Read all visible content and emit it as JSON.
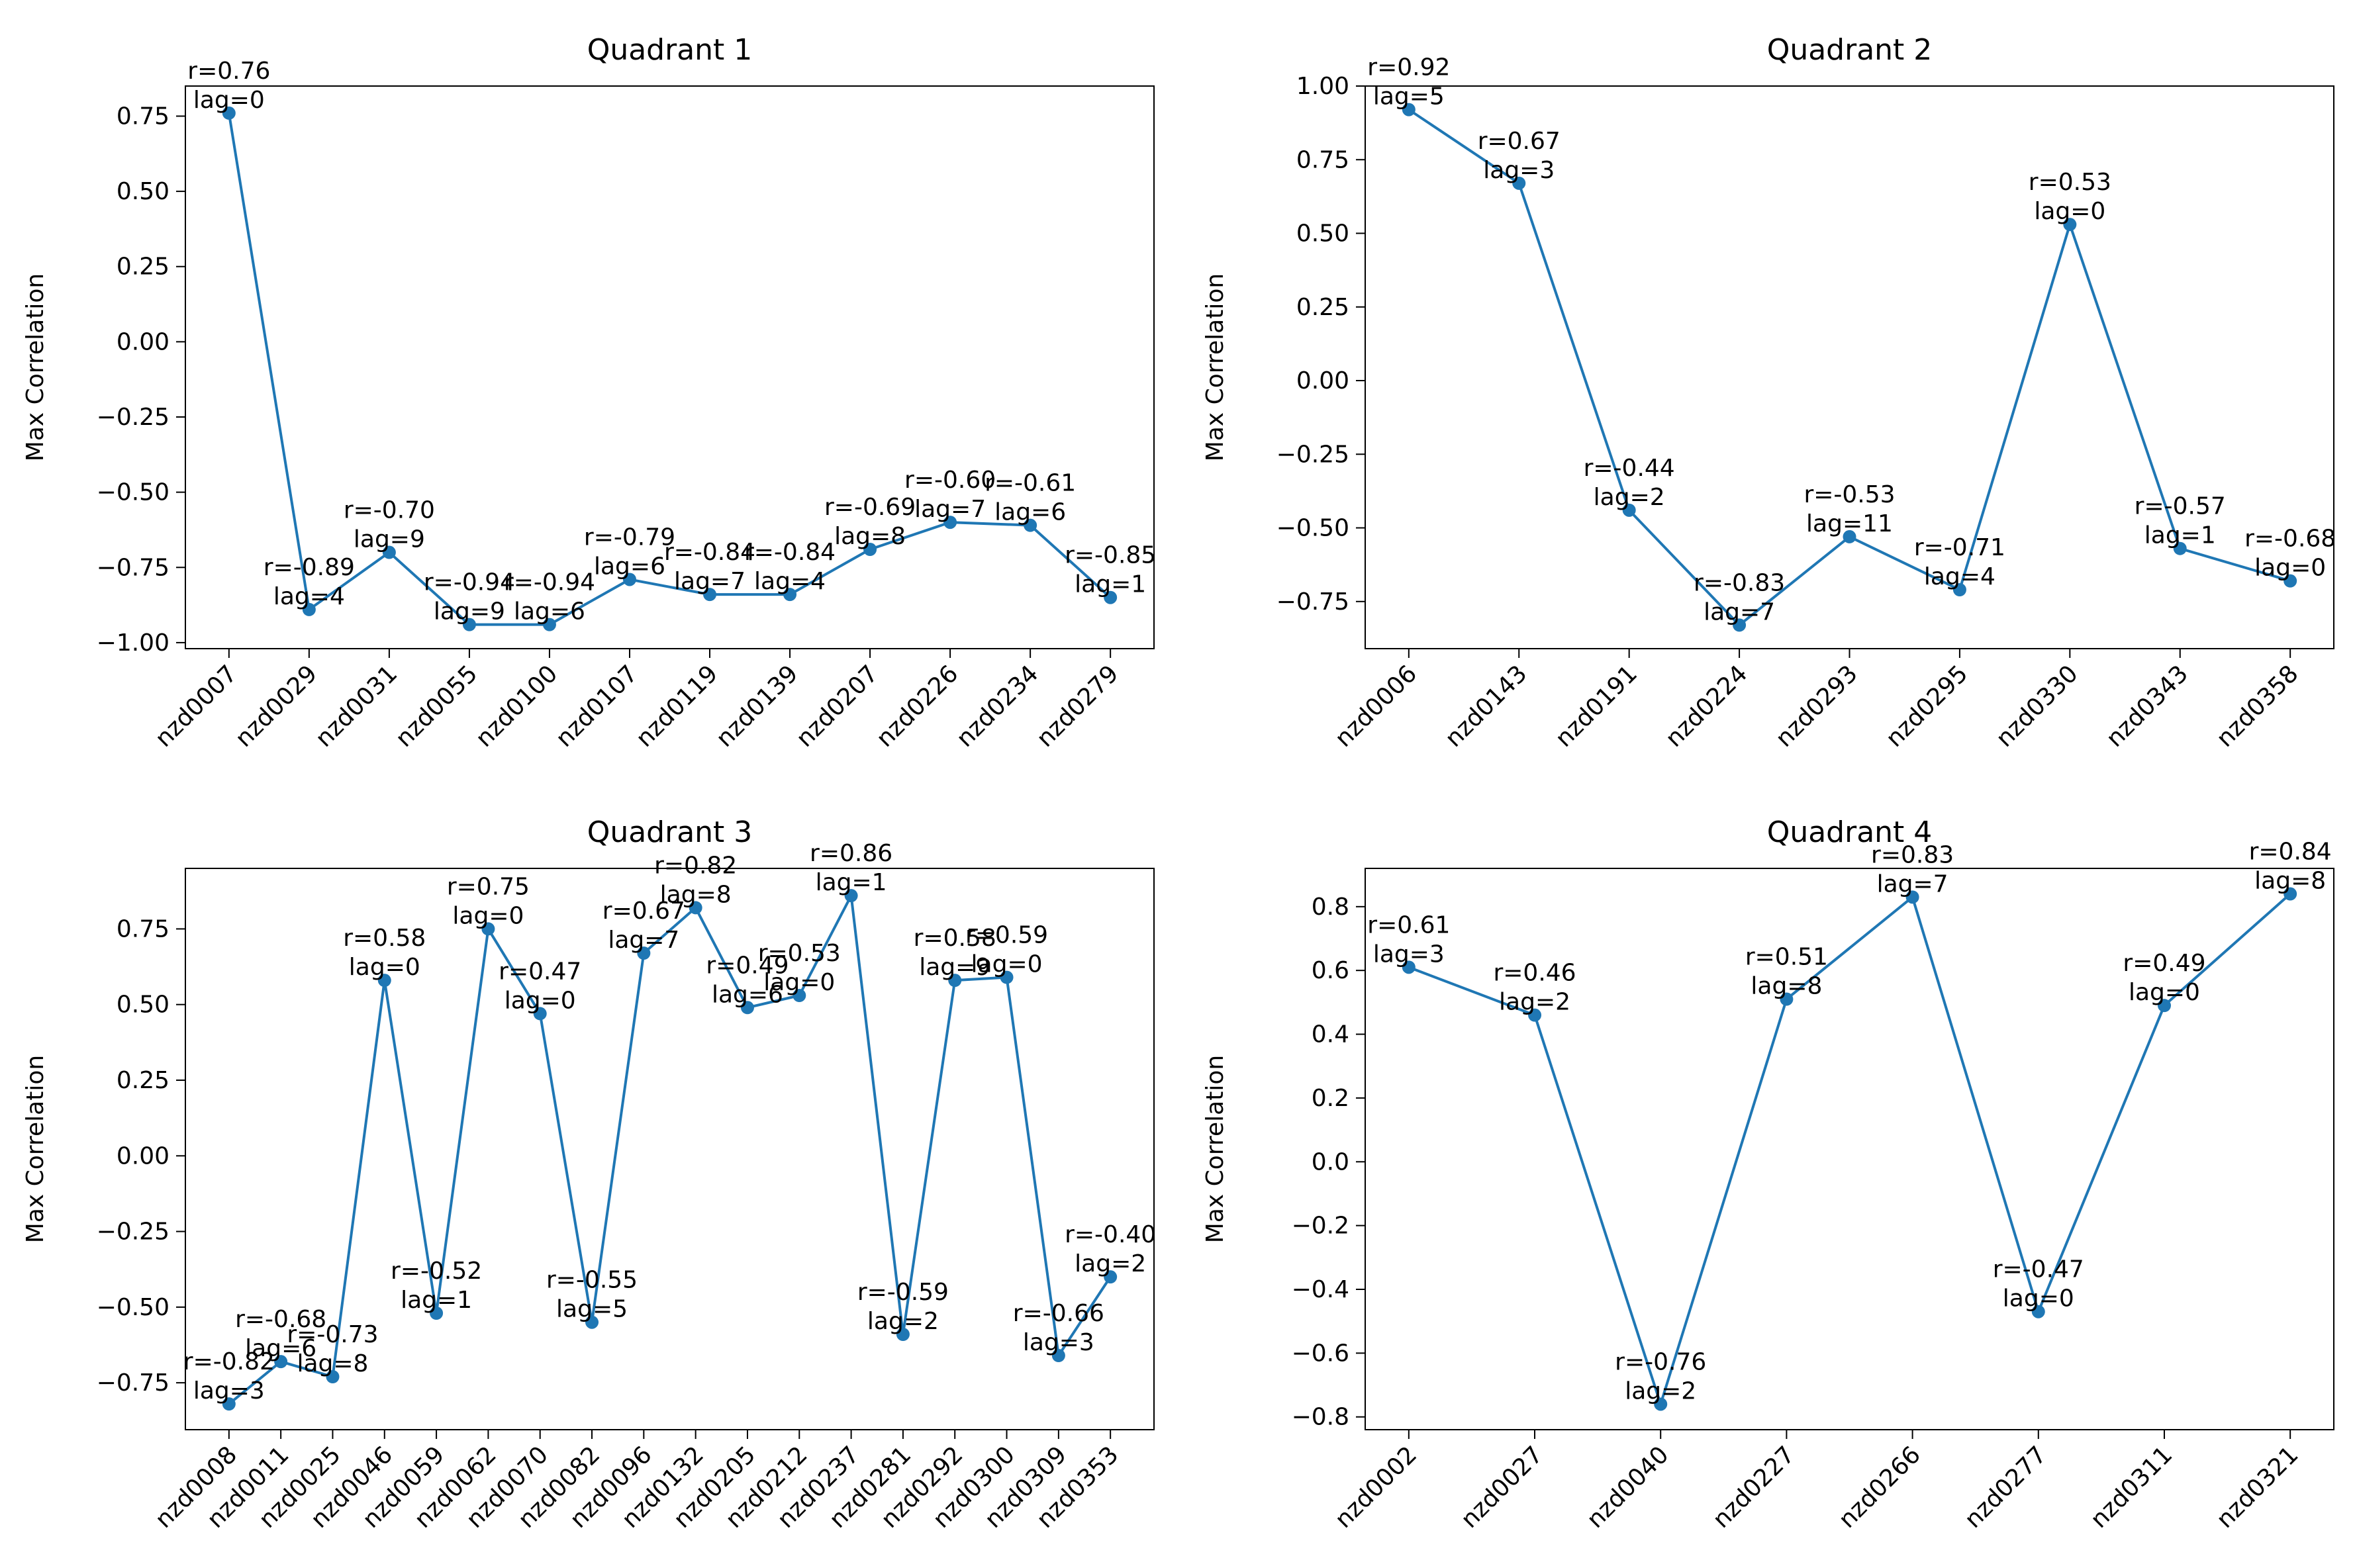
{
  "colors": {
    "line": "#1f77b4",
    "axis": "#000000",
    "background": "#ffffff"
  },
  "chart_data": [
    {
      "type": "line",
      "title": "Quadrant 1",
      "xlabel": "",
      "ylabel": "Max Correlation",
      "ylim": [
        -1.02,
        0.85
      ],
      "yticks": [
        "−1.00",
        "−0.75",
        "−0.50",
        "−0.25",
        "0.00",
        "0.25",
        "0.50",
        "0.75"
      ],
      "ytick_values": [
        -1.0,
        -0.75,
        -0.5,
        -0.25,
        0.0,
        0.25,
        0.5,
        0.75
      ],
      "grid": false,
      "legend": "none",
      "categories": [
        "nzd0007",
        "nzd0029",
        "nzd0031",
        "nzd0055",
        "nzd0100",
        "nzd0107",
        "nzd0119",
        "nzd0139",
        "nzd0207",
        "nzd0226",
        "nzd0234",
        "nzd0279"
      ],
      "values": [
        0.76,
        -0.89,
        -0.7,
        -0.94,
        -0.94,
        -0.79,
        -0.84,
        -0.84,
        -0.69,
        -0.6,
        -0.61,
        -0.85
      ],
      "r_labels": [
        "r=0.76",
        "r=-0.89",
        "r=-0.70",
        "r=-0.94",
        "r=-0.94",
        "r=-0.79",
        "r=-0.84",
        "r=-0.84",
        "r=-0.69",
        "r=-0.60",
        "r=-0.61",
        "r=-0.85"
      ],
      "lag_labels": [
        "lag=0",
        "lag=4",
        "lag=9",
        "lag=9",
        "lag=6",
        "lag=6",
        "lag=7",
        "lag=4",
        "lag=8",
        "lag=7",
        "lag=6",
        "lag=1"
      ]
    },
    {
      "type": "line",
      "title": "Quadrant 2",
      "xlabel": "",
      "ylabel": "Max Correlation",
      "ylim": [
        -0.91,
        1.0
      ],
      "yticks": [
        "−0.75",
        "−0.50",
        "−0.25",
        "0.00",
        "0.25",
        "0.50",
        "0.75",
        "1.00"
      ],
      "ytick_values": [
        -0.75,
        -0.5,
        -0.25,
        0.0,
        0.25,
        0.5,
        0.75,
        1.0
      ],
      "grid": false,
      "legend": "none",
      "categories": [
        "nzd0006",
        "nzd0143",
        "nzd0191",
        "nzd0224",
        "nzd0293",
        "nzd0295",
        "nzd0330",
        "nzd0343",
        "nzd0358"
      ],
      "values": [
        0.92,
        0.67,
        -0.44,
        -0.83,
        -0.53,
        -0.71,
        0.53,
        -0.57,
        -0.68
      ],
      "r_labels": [
        "r=0.92",
        "r=0.67",
        "r=-0.44",
        "r=-0.83",
        "r=-0.53",
        "r=-0.71",
        "r=0.53",
        "r=-0.57",
        "r=-0.68"
      ],
      "lag_labels": [
        "lag=5",
        "lag=3",
        "lag=2",
        "lag=7",
        "lag=11",
        "lag=4",
        "lag=0",
        "lag=1",
        "lag=0"
      ]
    },
    {
      "type": "line",
      "title": "Quadrant 3",
      "xlabel": "",
      "ylabel": "Max Correlation",
      "ylim": [
        -0.905,
        0.95
      ],
      "yticks": [
        "−0.75",
        "−0.50",
        "−0.25",
        "0.00",
        "0.25",
        "0.50",
        "0.75"
      ],
      "ytick_values": [
        -0.75,
        -0.5,
        -0.25,
        0.0,
        0.25,
        0.5,
        0.75
      ],
      "grid": false,
      "legend": "none",
      "categories": [
        "nzd0008",
        "nzd0011",
        "nzd0025",
        "nzd0046",
        "nzd0059",
        "nzd0062",
        "nzd0070",
        "nzd0082",
        "nzd0096",
        "nzd0132",
        "nzd0205",
        "nzd0212",
        "nzd0237",
        "nzd0281",
        "nzd0292",
        "nzd0300",
        "nzd0309",
        "nzd0353"
      ],
      "values": [
        -0.82,
        -0.68,
        -0.73,
        0.58,
        -0.52,
        0.75,
        0.47,
        -0.55,
        0.67,
        0.82,
        0.49,
        0.53,
        0.86,
        -0.59,
        0.58,
        0.59,
        -0.66,
        -0.4
      ],
      "r_labels": [
        "r=-0.82",
        "r=-0.68",
        "r=-0.73",
        "r=0.58",
        "r=-0.52",
        "r=0.75",
        "r=0.47",
        "r=-0.55",
        "r=0.67",
        "r=0.82",
        "r=0.49",
        "r=0.53",
        "r=0.86",
        "r=-0.59",
        "r=0.58",
        "r=0.59",
        "r=-0.66",
        "r=-0.40"
      ],
      "lag_labels": [
        "lag=3",
        "lag=6",
        "lag=8",
        "lag=0",
        "lag=1",
        "lag=0",
        "lag=0",
        "lag=5",
        "lag=7",
        "lag=8",
        "lag=6",
        "lag=0",
        "lag=1",
        "lag=2",
        "lag=9",
        "lag=0",
        "lag=3",
        "lag=2"
      ]
    },
    {
      "type": "line",
      "title": "Quadrant 4",
      "xlabel": "",
      "ylabel": "Max Correlation",
      "ylim": [
        -0.84,
        0.92
      ],
      "yticks": [
        "−0.8",
        "−0.6",
        "−0.4",
        "−0.2",
        "0.0",
        "0.2",
        "0.4",
        "0.6",
        "0.8"
      ],
      "ytick_values": [
        -0.8,
        -0.6,
        -0.4,
        -0.2,
        0.0,
        0.2,
        0.4,
        0.6,
        0.8
      ],
      "grid": false,
      "legend": "none",
      "categories": [
        "nzd0002",
        "nzd0027",
        "nzd0040",
        "nzd0227",
        "nzd0266",
        "nzd0277",
        "nzd0311",
        "nzd0321"
      ],
      "values": [
        0.61,
        0.46,
        -0.76,
        0.51,
        0.83,
        -0.47,
        0.49,
        0.84
      ],
      "r_labels": [
        "r=0.61",
        "r=0.46",
        "r=-0.76",
        "r=0.51",
        "r=0.83",
        "r=-0.47",
        "r=0.49",
        "r=0.84"
      ],
      "lag_labels": [
        "lag=3",
        "lag=2",
        "lag=2",
        "lag=8",
        "lag=7",
        "lag=0",
        "lag=0",
        "lag=8"
      ]
    }
  ]
}
